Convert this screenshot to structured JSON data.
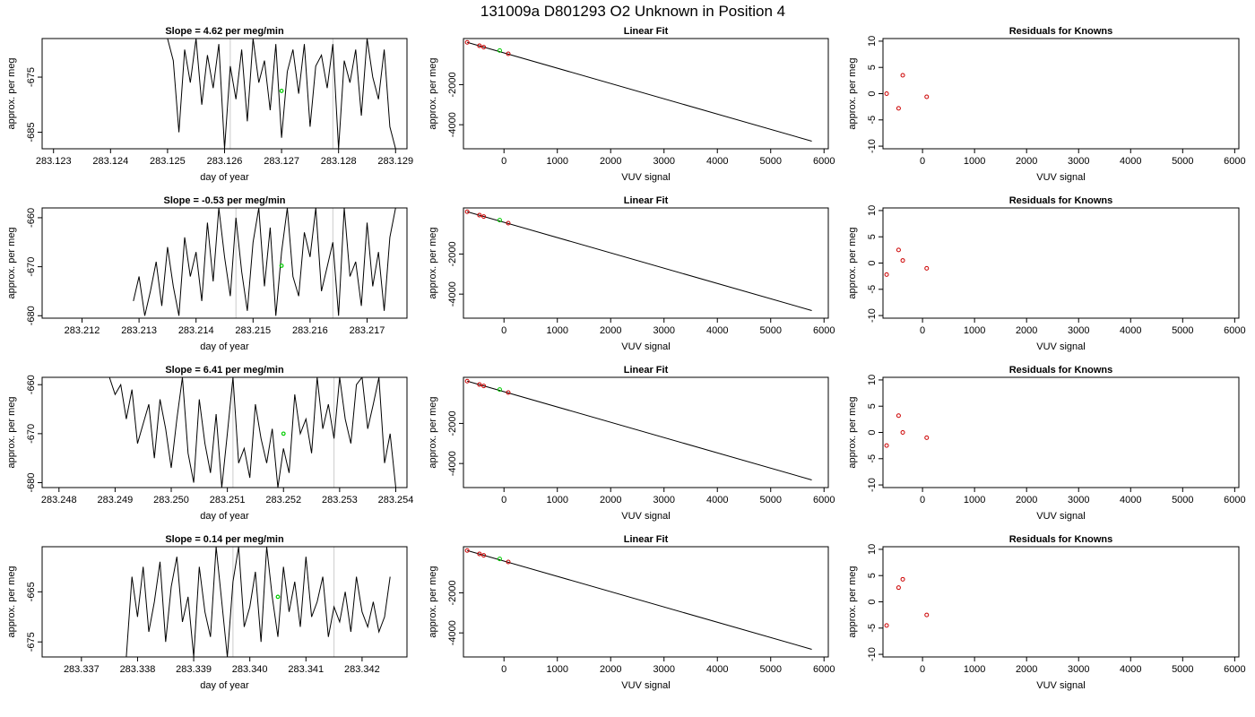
{
  "figure": {
    "title": "131009a      D801293   O2 Unknown in Position  4",
    "colors": {
      "axis": "#000000",
      "trace": "#000000",
      "marker_time": "#cccccc",
      "unknown": "#00cc00",
      "known": "#cc0000",
      "background": "#ffffff"
    }
  },
  "chart_data": [
    {
      "type": "line",
      "row": 0,
      "col": 0,
      "title": "Slope =  4.62  per meg/min",
      "xlabel": "day of year",
      "ylabel": "approx. per meg",
      "xlim": [
        283.1228,
        283.1292
      ],
      "ylim": [
        -688,
        -668
      ],
      "xticks": [
        "283.123",
        "283.124",
        "283.125",
        "283.126",
        "283.127",
        "283.128",
        "283.129"
      ],
      "yticks": [
        "-675",
        "-685"
      ],
      "series": [
        {
          "x": [
            283.125,
            283.1251,
            283.1252,
            283.1253,
            283.1254,
            283.1255,
            283.1256,
            283.1257,
            283.1258,
            283.1259,
            283.126,
            283.1261,
            283.1262,
            283.1263,
            283.1264,
            283.1265,
            283.1266,
            283.1267,
            283.1268,
            283.1269,
            283.127,
            283.1271,
            283.1272,
            283.1273,
            283.1274,
            283.1275,
            283.1276,
            283.1277,
            283.1278,
            283.1279,
            283.128,
            283.1281,
            283.1282,
            283.1283,
            283.1284,
            283.1285,
            283.1286,
            283.1287,
            283.1288,
            283.1289,
            283.129
          ],
          "y": [
            -668,
            -672,
            -685,
            -670,
            -676,
            -668,
            -680,
            -671,
            -677,
            -669,
            -688,
            -673,
            -679,
            -670,
            -683,
            -668,
            -676,
            -672,
            -681,
            -669,
            -686,
            -674,
            -670,
            -678,
            -669,
            -684,
            -673,
            -671,
            -677,
            -669,
            -688,
            -672,
            -676,
            -670,
            -682,
            -668,
            -675,
            -679,
            -670,
            -684,
            -688
          ]
        }
      ],
      "gray_lines": [
        283.1261,
        283.1279
      ],
      "unknown_point": [
        283.127,
        -677.5
      ]
    },
    {
      "type": "line",
      "row": 1,
      "col": 0,
      "title": "Slope =  -0.53  per meg/min",
      "xlabel": "day of year",
      "ylabel": "approx. per meg",
      "xlim": [
        283.2113,
        283.2177
      ],
      "ylim": [
        -680.5,
        -658
      ],
      "xticks": [
        "283.212",
        "283.213",
        "283.214",
        "283.215",
        "283.216",
        "283.217"
      ],
      "yticks": [
        "-660",
        "-670",
        "-680"
      ],
      "series": [
        {
          "x": [
            283.2129,
            283.213,
            283.2131,
            283.2132,
            283.2133,
            283.2134,
            283.2135,
            283.2136,
            283.2137,
            283.2138,
            283.2139,
            283.214,
            283.2141,
            283.2142,
            283.2143,
            283.2144,
            283.2145,
            283.2146,
            283.2147,
            283.2148,
            283.2149,
            283.215,
            283.2151,
            283.2152,
            283.2153,
            283.2154,
            283.2155,
            283.2156,
            283.2157,
            283.2158,
            283.2159,
            283.216,
            283.2161,
            283.2162,
            283.2163,
            283.2164,
            283.2165,
            283.2166,
            283.2167,
            283.2168,
            283.2169,
            283.217,
            283.2171,
            283.2172,
            283.2173,
            283.2174,
            283.2175
          ],
          "y": [
            -677,
            -672,
            -680,
            -675,
            -669,
            -678,
            -666,
            -674,
            -680,
            -664,
            -672,
            -667,
            -677,
            -661,
            -673,
            -658,
            -668,
            -676,
            -660,
            -671,
            -679,
            -665,
            -658,
            -674,
            -662,
            -680,
            -667,
            -658,
            -672,
            -676,
            -663,
            -668,
            -658,
            -675,
            -670,
            -665,
            -680,
            -658,
            -672,
            -669,
            -678,
            -661,
            -674,
            -667,
            -679,
            -664,
            -658
          ]
        }
      ],
      "gray_lines": [
        283.2147,
        283.2164
      ],
      "unknown_point": [
        283.2155,
        -669.8
      ]
    },
    {
      "type": "line",
      "row": 2,
      "col": 0,
      "title": "Slope =  6.41  per meg/min",
      "xlabel": "day of year",
      "ylabel": "approx. per meg",
      "xlim": [
        283.2477,
        283.2542
      ],
      "ylim": [
        -681,
        -658.5
      ],
      "xticks": [
        "283.248",
        "283.249",
        "283.250",
        "283.251",
        "283.252",
        "283.253",
        "283.254"
      ],
      "yticks": [
        "-660",
        "-670",
        "-680"
      ],
      "series": [
        {
          "x": [
            283.2489,
            283.249,
            283.2491,
            283.2492,
            283.2493,
            283.2494,
            283.2495,
            283.2496,
            283.2497,
            283.2498,
            283.2499,
            283.25,
            283.2501,
            283.2502,
            283.2503,
            283.2504,
            283.2505,
            283.2506,
            283.2507,
            283.2508,
            283.2509,
            283.251,
            283.2511,
            283.2512,
            283.2513,
            283.2514,
            283.2515,
            283.2516,
            283.2517,
            283.2518,
            283.2519,
            283.252,
            283.2521,
            283.2522,
            283.2523,
            283.2524,
            283.2525,
            283.2526,
            283.2527,
            283.2528,
            283.2529,
            283.253,
            283.2531,
            283.2532,
            283.2533,
            283.2534,
            283.2535,
            283.2536,
            283.2537,
            283.2538,
            283.2539,
            283.254
          ],
          "y": [
            -658.5,
            -662,
            -660,
            -667,
            -661,
            -672,
            -668,
            -664,
            -675,
            -663,
            -669,
            -677,
            -667,
            -658.5,
            -674,
            -680,
            -663,
            -672,
            -678,
            -666,
            -681,
            -670,
            -658.5,
            -676,
            -673,
            -679,
            -664,
            -671,
            -676,
            -669,
            -681,
            -673,
            -678,
            -662,
            -670,
            -667,
            -674,
            -658.5,
            -669,
            -664,
            -671,
            -658.5,
            -667,
            -672,
            -660,
            -658.5,
            -669,
            -664,
            -658.5,
            -676,
            -670,
            -681
          ]
        }
      ],
      "gray_lines": [
        283.2511,
        283.2529
      ],
      "unknown_point": [
        283.252,
        -670.0
      ]
    },
    {
      "type": "line",
      "row": 3,
      "col": 0,
      "title": "Slope =  0.14  per meg/min",
      "xlabel": "day of year",
      "ylabel": "approx. per meg",
      "xlim": [
        283.3363,
        283.3428
      ],
      "ylim": [
        -678,
        -656
      ],
      "xticks": [
        "283.337",
        "283.338",
        "283.339",
        "283.340",
        "283.341",
        "283.342"
      ],
      "yticks": [
        "-665",
        "-675"
      ],
      "series": [
        {
          "x": [
            283.3378,
            283.3379,
            283.338,
            283.3381,
            283.3382,
            283.3383,
            283.3384,
            283.3385,
            283.3386,
            283.3387,
            283.3388,
            283.3389,
            283.339,
            283.3391,
            283.3392,
            283.3393,
            283.3394,
            283.3395,
            283.3396,
            283.3397,
            283.3398,
            283.3399,
            283.34,
            283.3401,
            283.3402,
            283.3403,
            283.3404,
            283.3405,
            283.3406,
            283.3407,
            283.3408,
            283.3409,
            283.341,
            283.3411,
            283.3412,
            283.3413,
            283.3414,
            283.3415,
            283.3416,
            283.3417,
            283.3418,
            283.3419,
            283.342,
            283.3421,
            283.3422,
            283.3423,
            283.3424,
            283.3425
          ],
          "y": [
            -678,
            -662,
            -670,
            -660,
            -673,
            -667,
            -659,
            -675,
            -664,
            -658,
            -671,
            -666,
            -678,
            -660,
            -669,
            -674,
            -656,
            -667,
            -678,
            -663,
            -656,
            -672,
            -668,
            -661,
            -675,
            -656,
            -666,
            -674,
            -660,
            -669,
            -663,
            -672,
            -658,
            -670,
            -667,
            -662,
            -674,
            -668,
            -671,
            -665,
            -673,
            -662,
            -669,
            -672,
            -667,
            -673,
            -670,
            -662
          ]
        }
      ],
      "gray_lines": [
        283.3397,
        283.3415
      ],
      "unknown_point": [
        283.3405,
        -666.0
      ]
    },
    {
      "type": "scatter",
      "row": 0,
      "col": 1,
      "title": "Linear Fit",
      "xlabel": "VUV signal",
      "ylabel": "approx. per meg",
      "xlim": [
        -760,
        6080
      ],
      "ylim": [
        -5200,
        300
      ],
      "xticks": [
        0,
        1000,
        2000,
        3000,
        4000,
        5000,
        6000
      ],
      "yticks": [
        -2000,
        -4000
      ],
      "fit_line": [
        [
          -690,
          110
        ],
        [
          5770,
          -4820
        ]
      ],
      "knowns": [
        [
          -690,
          110
        ],
        [
          -460,
          -60
        ],
        [
          -380,
          -130
        ],
        [
          80,
          -460
        ]
      ],
      "unknown": [
        [
          -80,
          -300
        ]
      ]
    },
    {
      "type": "scatter",
      "row": 1,
      "col": 1,
      "title": "Linear Fit",
      "xlabel": "VUV signal",
      "ylabel": "approx. per meg",
      "xlim": [
        -760,
        6080
      ],
      "ylim": [
        -5200,
        300
      ],
      "xticks": [
        0,
        1000,
        2000,
        3000,
        4000,
        5000,
        6000
      ],
      "yticks": [
        -2000,
        -4000
      ],
      "fit_line": [
        [
          -690,
          110
        ],
        [
          5770,
          -4820
        ]
      ],
      "knowns": [
        [
          -690,
          110
        ],
        [
          -460,
          -60
        ],
        [
          -380,
          -130
        ],
        [
          80,
          -460
        ]
      ],
      "unknown": [
        [
          -80,
          -310
        ]
      ]
    },
    {
      "type": "scatter",
      "row": 2,
      "col": 1,
      "title": "Linear Fit",
      "xlabel": "VUV signal",
      "ylabel": "approx. per meg",
      "xlim": [
        -760,
        6080
      ],
      "ylim": [
        -5200,
        300
      ],
      "xticks": [
        0,
        1000,
        2000,
        3000,
        4000,
        5000,
        6000
      ],
      "yticks": [
        -2000,
        -4000
      ],
      "fit_line": [
        [
          -690,
          110
        ],
        [
          5770,
          -4820
        ]
      ],
      "knowns": [
        [
          -690,
          110
        ],
        [
          -460,
          -60
        ],
        [
          -380,
          -130
        ],
        [
          80,
          -460
        ]
      ],
      "unknown": [
        [
          -80,
          -310
        ]
      ]
    },
    {
      "type": "scatter",
      "row": 3,
      "col": 1,
      "title": "Linear Fit",
      "xlabel": "VUV signal",
      "ylabel": "approx. per meg",
      "xlim": [
        -760,
        6080
      ],
      "ylim": [
        -5200,
        300
      ],
      "xticks": [
        0,
        1000,
        2000,
        3000,
        4000,
        5000,
        6000
      ],
      "yticks": [
        -2000,
        -4000
      ],
      "fit_line": [
        [
          -690,
          110
        ],
        [
          5770,
          -4820
        ]
      ],
      "knowns": [
        [
          -690,
          110
        ],
        [
          -460,
          -60
        ],
        [
          -380,
          -130
        ],
        [
          80,
          -460
        ]
      ],
      "unknown": [
        [
          -80,
          -310
        ]
      ]
    },
    {
      "type": "scatter",
      "row": 0,
      "col": 2,
      "title": "Residuals for Knowns",
      "xlabel": "VUV signal",
      "ylabel": "approx. per meg",
      "xlim": [
        -760,
        6080
      ],
      "ylim": [
        -10.5,
        10.5
      ],
      "xticks": [
        0,
        1000,
        2000,
        3000,
        4000,
        5000,
        6000
      ],
      "yticks": [
        10,
        5,
        0,
        -5,
        -10
      ],
      "points": [
        [
          -690,
          0
        ],
        [
          -460,
          -2.8
        ],
        [
          -380,
          3.5
        ],
        [
          80,
          -0.6
        ]
      ]
    },
    {
      "type": "scatter",
      "row": 1,
      "col": 2,
      "title": "Residuals for Knowns",
      "xlabel": "VUV signal",
      "ylabel": "approx. per meg",
      "xlim": [
        -760,
        6080
      ],
      "ylim": [
        -10.5,
        10.5
      ],
      "xticks": [
        0,
        1000,
        2000,
        3000,
        4000,
        5000,
        6000
      ],
      "yticks": [
        10,
        5,
        0,
        -5,
        -10
      ],
      "points": [
        [
          -690,
          -2.2
        ],
        [
          -460,
          2.5
        ],
        [
          -380,
          0.5
        ],
        [
          80,
          -1.0
        ]
      ]
    },
    {
      "type": "scatter",
      "row": 2,
      "col": 2,
      "title": "Residuals for Knowns",
      "xlabel": "VUV signal",
      "ylabel": "approx. per meg",
      "xlim": [
        -760,
        6080
      ],
      "ylim": [
        -10.5,
        10.5
      ],
      "xticks": [
        0,
        1000,
        2000,
        3000,
        4000,
        5000,
        6000
      ],
      "yticks": [
        10,
        5,
        0,
        -5,
        -10
      ],
      "points": [
        [
          -690,
          -2.5
        ],
        [
          -460,
          3.2
        ],
        [
          -380,
          0
        ],
        [
          80,
          -1.0
        ]
      ]
    },
    {
      "type": "scatter",
      "row": 3,
      "col": 2,
      "title": "Residuals for Knowns",
      "xlabel": "VUV signal",
      "ylabel": "approx. per meg",
      "xlim": [
        -760,
        6080
      ],
      "ylim": [
        -10.5,
        10.5
      ],
      "xticks": [
        0,
        1000,
        2000,
        3000,
        4000,
        5000,
        6000
      ],
      "yticks": [
        10,
        5,
        0,
        -5,
        -10
      ],
      "points": [
        [
          -690,
          -4.5
        ],
        [
          -460,
          2.7
        ],
        [
          -380,
          4.3
        ],
        [
          80,
          -2.5
        ]
      ]
    }
  ]
}
